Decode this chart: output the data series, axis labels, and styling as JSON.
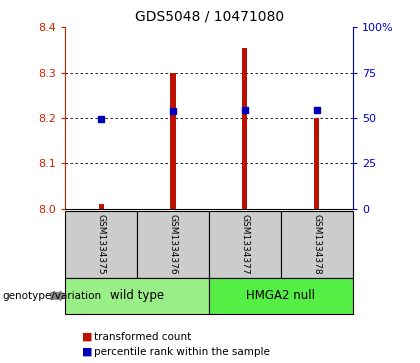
{
  "title": "GDS5048 / 10471080",
  "samples": [
    "GSM1334375",
    "GSM1334376",
    "GSM1334377",
    "GSM1334378"
  ],
  "bar_values": [
    8.01,
    8.3,
    8.355,
    8.2
  ],
  "dot_values": [
    8.198,
    8.215,
    8.218,
    8.218
  ],
  "bar_bottom": 8.0,
  "ylim": [
    8.0,
    8.4
  ],
  "y2lim": [
    0,
    100
  ],
  "yticks": [
    8.0,
    8.1,
    8.2,
    8.3,
    8.4
  ],
  "y2ticks": [
    0,
    25,
    50,
    75,
    100
  ],
  "y2ticklabels": [
    "0",
    "25",
    "50",
    "75",
    "100%"
  ],
  "bar_color": "#bb1100",
  "dot_color": "#0000bb",
  "groups": [
    {
      "label": "wild type",
      "samples": [
        0,
        1
      ],
      "color": "#99ee88"
    },
    {
      "label": "HMGA2 null",
      "samples": [
        2,
        3
      ],
      "color": "#55ee44"
    }
  ],
  "genotype_label": "genotype/variation",
  "legend_bar_label": "transformed count",
  "legend_dot_label": "percentile rank within the sample",
  "bg_color": "#ffffff",
  "sample_bg": "#cccccc",
  "left_ytick_color": "#cc2200",
  "right_ytick_color": "#0000cc"
}
